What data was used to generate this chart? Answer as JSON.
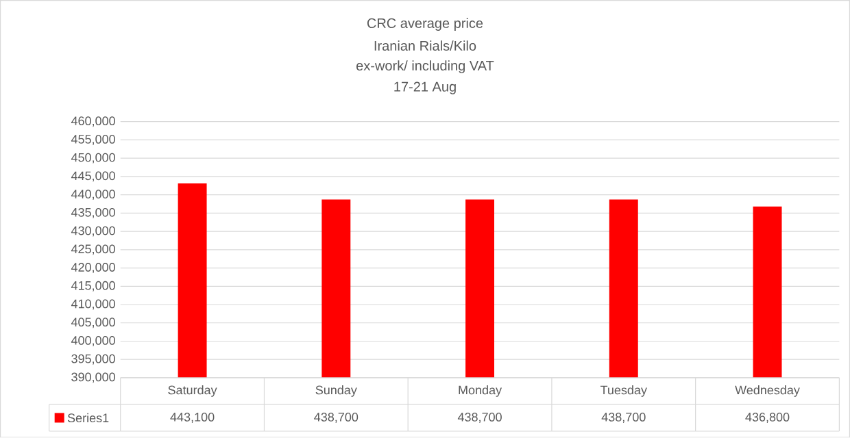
{
  "chart_data": {
    "type": "bar",
    "title": "CRC average price",
    "subtitle": "Iranian Rials/Kilo",
    "annotations": [
      "ex-work/ including VAT",
      "17-21 Aug"
    ],
    "categories": [
      "Saturday",
      "Sunday",
      "Monday",
      "Tuesday",
      "Wednesday"
    ],
    "series": [
      {
        "name": "Series1",
        "color": "#ff0000",
        "values": [
          443100,
          438700,
          438700,
          438700,
          436800
        ],
        "value_labels": [
          "443,100",
          "438,700",
          "438,700",
          "438,700",
          "436,800"
        ]
      }
    ],
    "ylim": [
      390000,
      460000
    ],
    "yticks": [
      {
        "value": 390000,
        "label": "390,000"
      },
      {
        "value": 395000,
        "label": "395,000"
      },
      {
        "value": 400000,
        "label": "400,000"
      },
      {
        "value": 405000,
        "label": "405,000"
      },
      {
        "value": 410000,
        "label": "410,000"
      },
      {
        "value": 415000,
        "label": "415,000"
      },
      {
        "value": 420000,
        "label": "420,000"
      },
      {
        "value": 425000,
        "label": "425,000"
      },
      {
        "value": 430000,
        "label": "430,000"
      },
      {
        "value": 435000,
        "label": "435,000"
      },
      {
        "value": 440000,
        "label": "440,000"
      },
      {
        "value": 445000,
        "label": "445,000"
      },
      {
        "value": 450000,
        "label": "450,000"
      },
      {
        "value": 455000,
        "label": "455,000"
      },
      {
        "value": 460000,
        "label": "460,000"
      }
    ],
    "grid": "y"
  }
}
